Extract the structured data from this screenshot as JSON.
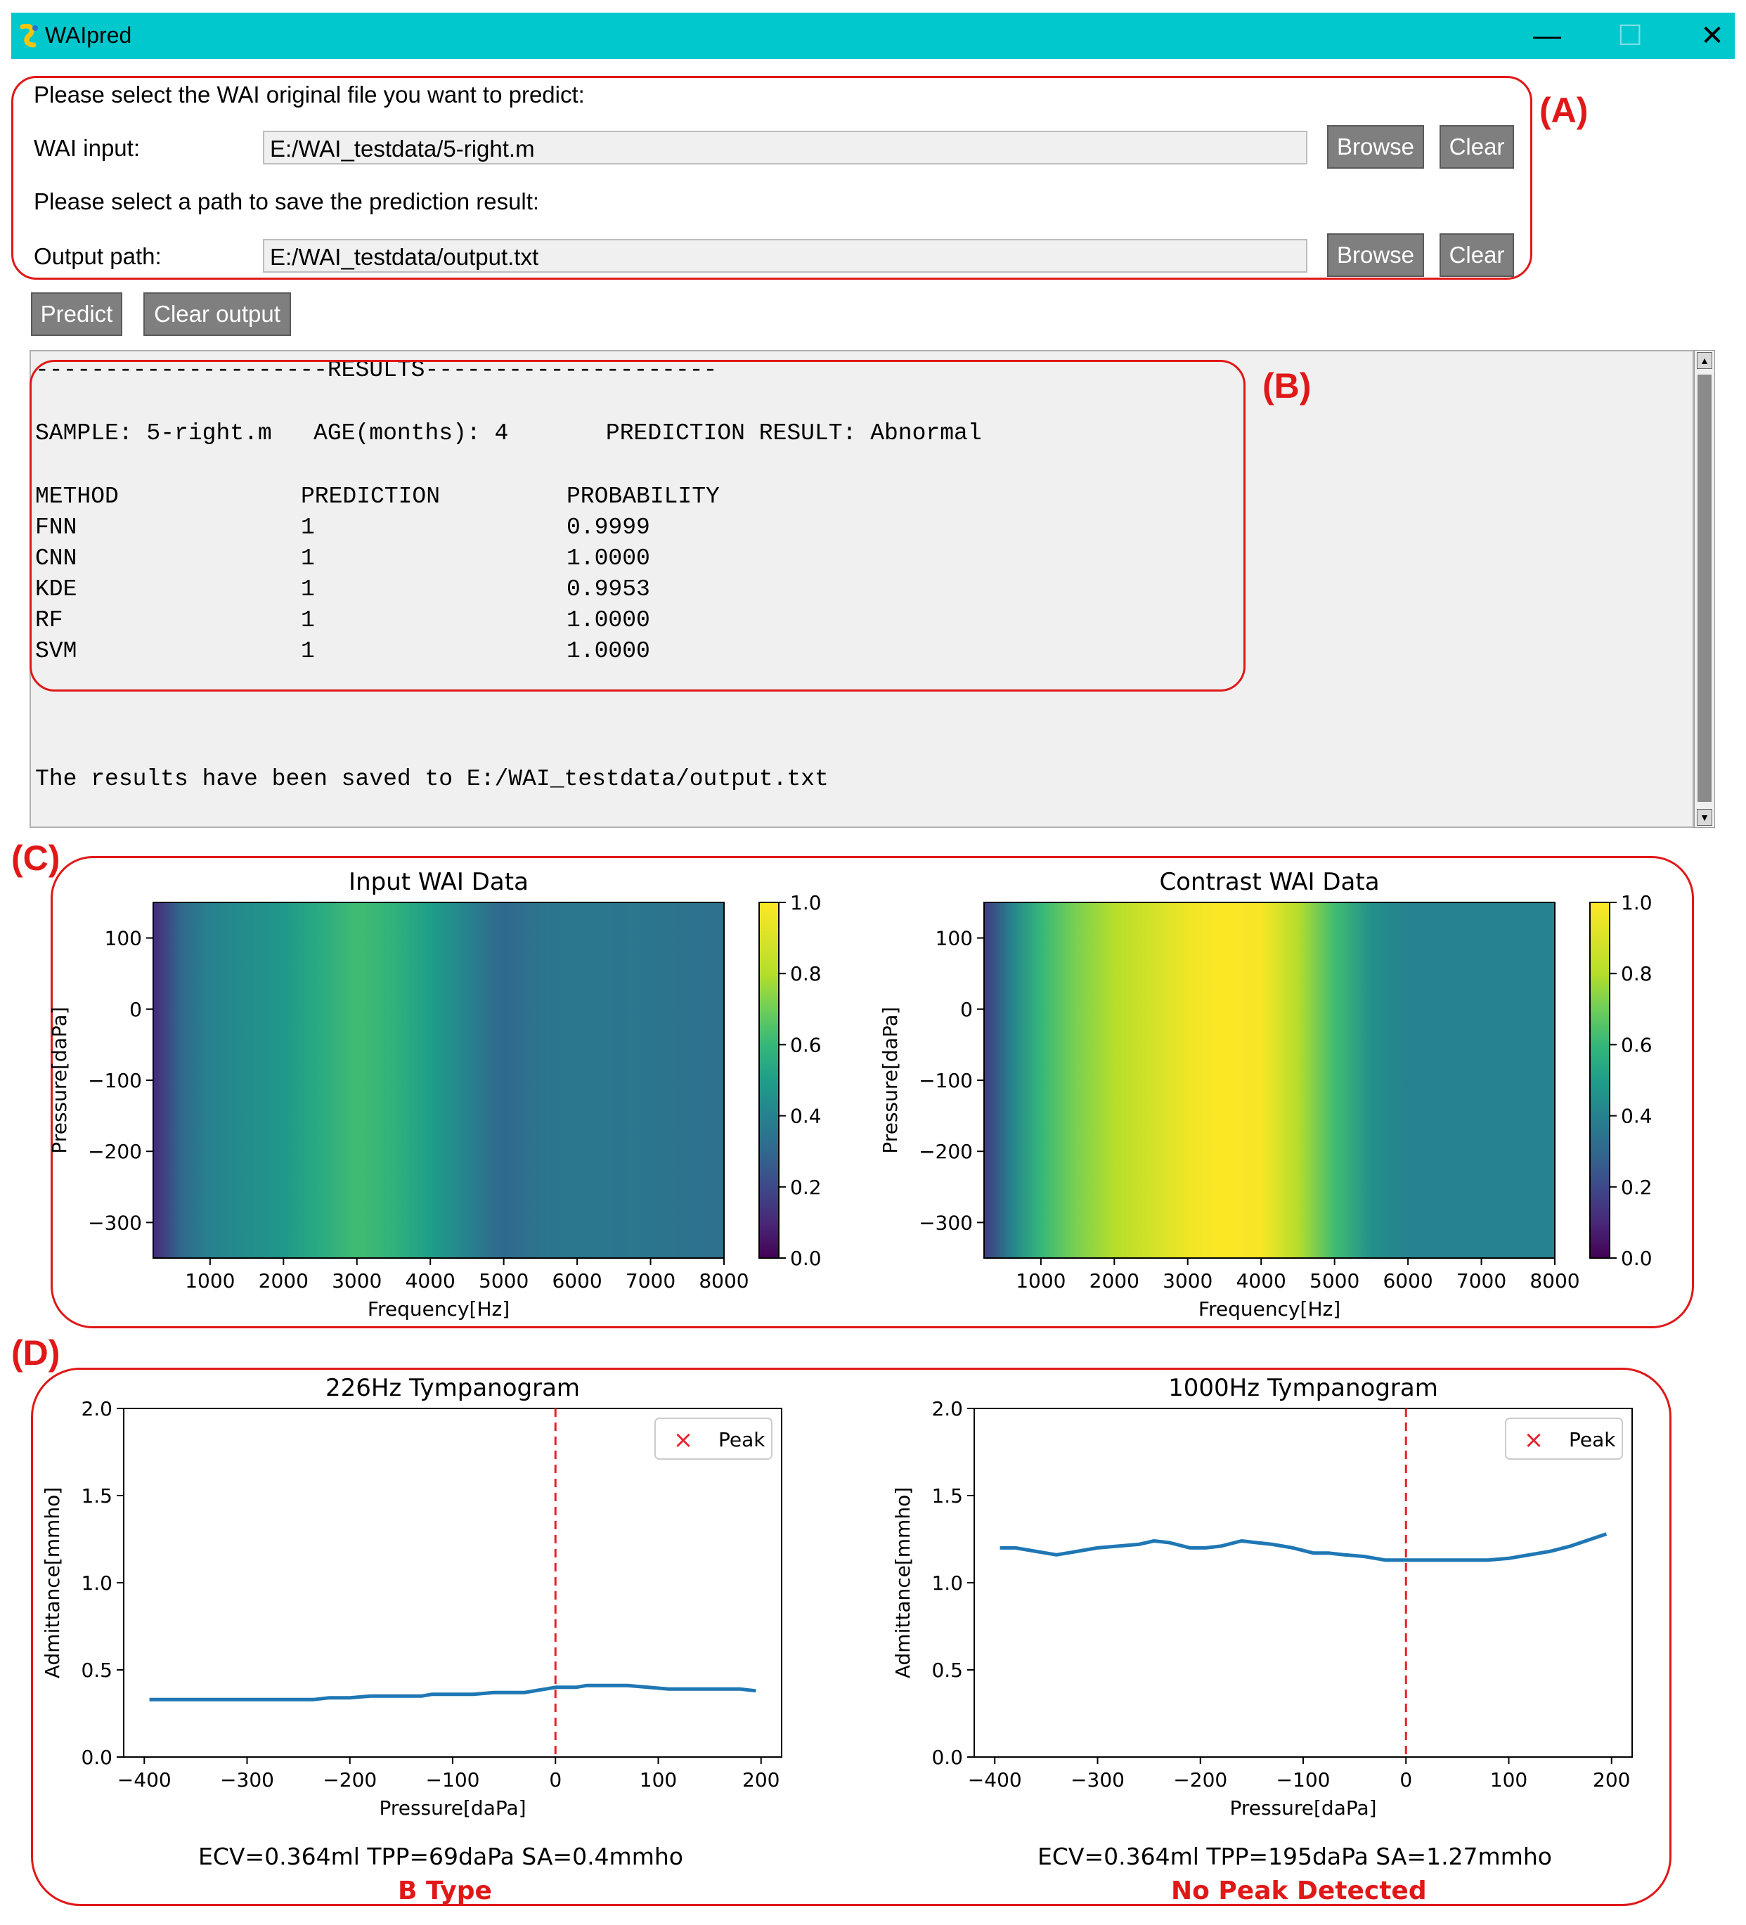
{
  "window": {
    "title": "WAIpred",
    "minimize_icon": "minimize-icon",
    "maximize_icon": "maximize-icon",
    "close_icon": "close-icon",
    "titlebar_color": "#00c8cd"
  },
  "section_labels": {
    "a": "(A)",
    "b": "(B)",
    "c": "(C)",
    "d": "(D)"
  },
  "form": {
    "select_prompt": "Please select the WAI original file you want to predict:",
    "wai_input_label": "WAI input:",
    "wai_input_value": "E:/WAI_testdata/5-right.m",
    "save_prompt": "Please select a path to save the prediction result:",
    "output_label": "Output path:",
    "output_value": "E:/WAI_testdata/output.txt",
    "browse_label": "Browse",
    "clear_label": "Clear"
  },
  "actions": {
    "predict_label": "Predict",
    "clear_output_label": "Clear output"
  },
  "output": {
    "header": "---------------------RESULTS---------------------",
    "sample_line": "SAMPLE: 5-right.m   AGE(months): 4       PREDICTION RESULT: Abnormal",
    "columns": [
      "METHOD",
      "PREDICTION",
      "PROBABILITY"
    ],
    "rows": [
      {
        "method": "FNN",
        "prediction": "1",
        "probability": "0.9999"
      },
      {
        "method": "CNN",
        "prediction": "1",
        "probability": "1.0000"
      },
      {
        "method": "KDE",
        "prediction": "1",
        "probability": "0.9953"
      },
      {
        "method": "RF",
        "prediction": "1",
        "probability": "1.0000"
      },
      {
        "method": "SVM",
        "prediction": "1",
        "probability": "1.0000"
      }
    ],
    "saved_line": "The results have been saved to E:/WAI_testdata/output.txt"
  },
  "chart_data": [
    {
      "type": "heatmap",
      "title": "Input WAI Data",
      "xlabel": "Frequency[Hz]",
      "ylabel": "Pressure[daPa]",
      "xlim": [
        226,
        8000
      ],
      "ylim": [
        -350,
        150
      ],
      "xticks": [
        "1000",
        "2000",
        "3000",
        "4000",
        "5000",
        "6000",
        "7000",
        "8000"
      ],
      "yticks": [
        "100",
        "0",
        "−100",
        "−200",
        "−300"
      ],
      "colorbar_ticks": [
        "0.0",
        "0.2",
        "0.4",
        "0.6",
        "0.8",
        "1.0"
      ],
      "clim": [
        0,
        1
      ],
      "colormap": "viridis",
      "column_values": [
        {
          "x": 226,
          "v": 0.1
        },
        {
          "x": 600,
          "v": 0.3
        },
        {
          "x": 1000,
          "v": 0.4
        },
        {
          "x": 1500,
          "v": 0.44
        },
        {
          "x": 2000,
          "v": 0.48
        },
        {
          "x": 2500,
          "v": 0.55
        },
        {
          "x": 3000,
          "v": 0.62
        },
        {
          "x": 3500,
          "v": 0.58
        },
        {
          "x": 4000,
          "v": 0.5
        },
        {
          "x": 4500,
          "v": 0.4
        },
        {
          "x": 5000,
          "v": 0.3
        },
        {
          "x": 5500,
          "v": 0.35
        },
        {
          "x": 6000,
          "v": 0.36
        },
        {
          "x": 7000,
          "v": 0.35
        },
        {
          "x": 8000,
          "v": 0.33
        }
      ]
    },
    {
      "type": "heatmap",
      "title": "Contrast WAI Data",
      "xlabel": "Frequency[Hz]",
      "ylabel": "Pressure[daPa]",
      "xlim": [
        226,
        8000
      ],
      "ylim": [
        -350,
        150
      ],
      "xticks": [
        "1000",
        "2000",
        "3000",
        "4000",
        "5000",
        "6000",
        "7000",
        "8000"
      ],
      "yticks": [
        "100",
        "0",
        "−100",
        "−200",
        "−300"
      ],
      "colorbar_ticks": [
        "0.0",
        "0.2",
        "0.4",
        "0.6",
        "0.8",
        "1.0"
      ],
      "clim": [
        0,
        1
      ],
      "colormap": "viridis",
      "column_values": [
        {
          "x": 226,
          "v": 0.15
        },
        {
          "x": 600,
          "v": 0.4
        },
        {
          "x": 1000,
          "v": 0.6
        },
        {
          "x": 1500,
          "v": 0.72
        },
        {
          "x": 2000,
          "v": 0.8
        },
        {
          "x": 2500,
          "v": 0.88
        },
        {
          "x": 3000,
          "v": 0.96
        },
        {
          "x": 3500,
          "v": 1.0
        },
        {
          "x": 4000,
          "v": 0.98
        },
        {
          "x": 4500,
          "v": 0.8
        },
        {
          "x": 5000,
          "v": 0.62
        },
        {
          "x": 5500,
          "v": 0.45
        },
        {
          "x": 6000,
          "v": 0.4
        },
        {
          "x": 7000,
          "v": 0.4
        },
        {
          "x": 8000,
          "v": 0.4
        }
      ]
    },
    {
      "type": "line",
      "title": "226Hz Tympanogram",
      "xlabel": "Pressure[daPa]",
      "ylabel": "Admittance[mmho]",
      "xlim": [
        -420,
        220
      ],
      "ylim": [
        0,
        2.0
      ],
      "xticks": [
        -400,
        -300,
        -200,
        -100,
        0,
        100,
        200
      ],
      "yticks": [
        0.0,
        0.5,
        1.0,
        1.5,
        2.0
      ],
      "legend": {
        "entry": "Peak",
        "placement": "top-right"
      },
      "vline_x": 0,
      "x": [
        -395,
        -350,
        -300,
        -250,
        -235,
        -220,
        -200,
        -180,
        -150,
        -130,
        -120,
        -100,
        -80,
        -60,
        -50,
        -30,
        -10,
        0,
        10,
        20,
        30,
        50,
        70,
        90,
        110,
        130,
        150,
        180,
        195
      ],
      "y": [
        0.33,
        0.33,
        0.33,
        0.33,
        0.33,
        0.34,
        0.34,
        0.35,
        0.35,
        0.35,
        0.36,
        0.36,
        0.36,
        0.37,
        0.37,
        0.37,
        0.39,
        0.4,
        0.4,
        0.4,
        0.41,
        0.41,
        0.41,
        0.4,
        0.39,
        0.39,
        0.39,
        0.39,
        0.38
      ]
    },
    {
      "type": "line",
      "title": "1000Hz Tympanogram",
      "xlabel": "Pressure[daPa]",
      "ylabel": "Admittance[mmho]",
      "xlim": [
        -420,
        220
      ],
      "ylim": [
        0,
        2.0
      ],
      "xticks": [
        -400,
        -300,
        -200,
        -100,
        0,
        100,
        200
      ],
      "yticks": [
        0.0,
        0.5,
        1.0,
        1.5,
        2.0
      ],
      "legend": {
        "entry": "Peak",
        "placement": "top-right"
      },
      "vline_x": 0,
      "x": [
        -395,
        -380,
        -360,
        -340,
        -320,
        -300,
        -280,
        -260,
        -245,
        -230,
        -210,
        -195,
        -180,
        -160,
        -145,
        -130,
        -110,
        -90,
        -75,
        -60,
        -40,
        -20,
        0,
        20,
        40,
        60,
        80,
        100,
        120,
        140,
        160,
        180,
        195
      ],
      "y": [
        1.2,
        1.2,
        1.18,
        1.16,
        1.18,
        1.2,
        1.21,
        1.22,
        1.24,
        1.23,
        1.2,
        1.2,
        1.21,
        1.24,
        1.23,
        1.22,
        1.2,
        1.17,
        1.17,
        1.16,
        1.15,
        1.13,
        1.13,
        1.13,
        1.13,
        1.13,
        1.13,
        1.14,
        1.16,
        1.18,
        1.21,
        1.25,
        1.28
      ]
    }
  ],
  "captions": {
    "left_stats": "ECV=0.364ml  TPP=69daPa  SA=0.4mmho",
    "left_type": "B Type",
    "right_stats": "ECV=0.364ml  TPP=195daPa  SA=1.27mmho",
    "right_type": "No Peak Detected"
  }
}
